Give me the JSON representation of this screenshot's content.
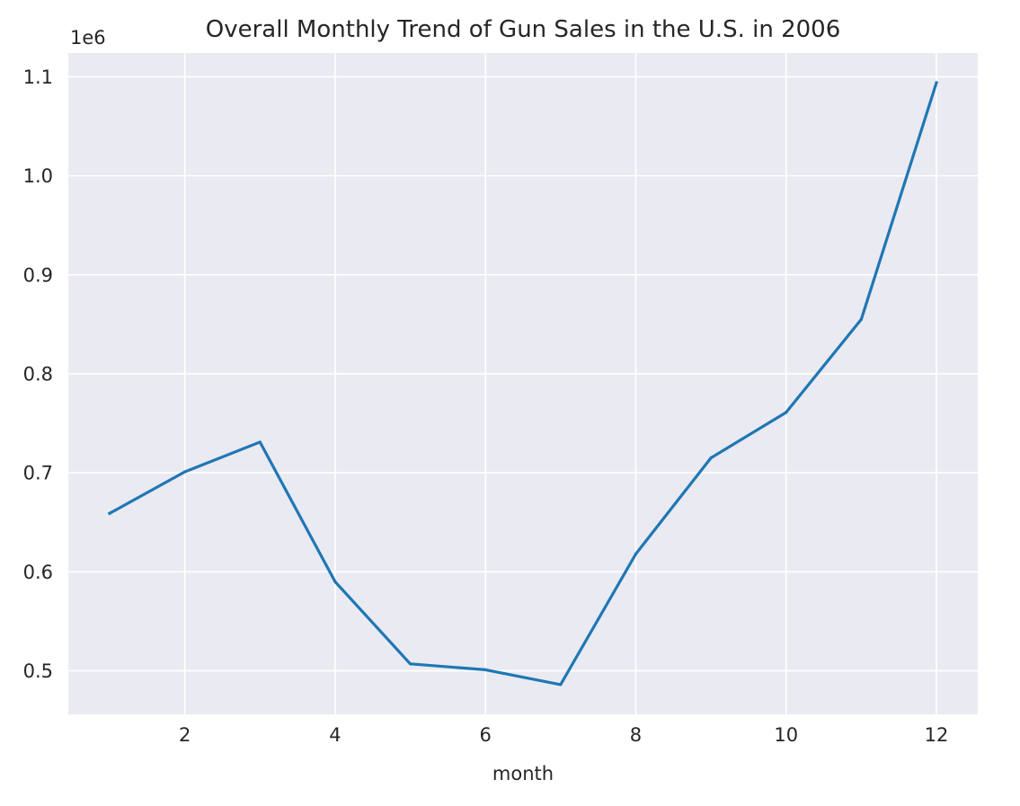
{
  "chart_data": {
    "type": "line",
    "title": "Overall Monthly Trend of Gun Sales in the U.S. in 2006",
    "xlabel": "month",
    "ylabel": "",
    "y_offset_label": "1e6",
    "x": [
      1,
      2,
      3,
      4,
      5,
      6,
      7,
      8,
      9,
      10,
      11,
      12
    ],
    "series": [
      {
        "values": [
          0.659,
          0.701,
          0.731,
          0.59,
          0.507,
          0.501,
          0.486,
          0.618,
          0.715,
          0.761,
          0.855,
          1.094
        ],
        "color": "#1f77b4"
      }
    ],
    "xticks": [
      2,
      4,
      6,
      8,
      10,
      12
    ],
    "yticks": [
      0.5,
      0.6,
      0.7,
      0.8,
      0.9,
      1.0,
      1.1
    ],
    "xtick_labels": [
      "2",
      "4",
      "6",
      "8",
      "10",
      "12"
    ],
    "ytick_labels": [
      "0.5",
      "0.6",
      "0.7",
      "0.8",
      "0.9",
      "1.0",
      "1.1"
    ],
    "xlim": [
      0.45,
      12.55
    ],
    "ylim": [
      0.456,
      1.124
    ],
    "grid": true,
    "legend": "none",
    "background_color": "#eaeaf2",
    "grid_color": "#ffffff"
  }
}
